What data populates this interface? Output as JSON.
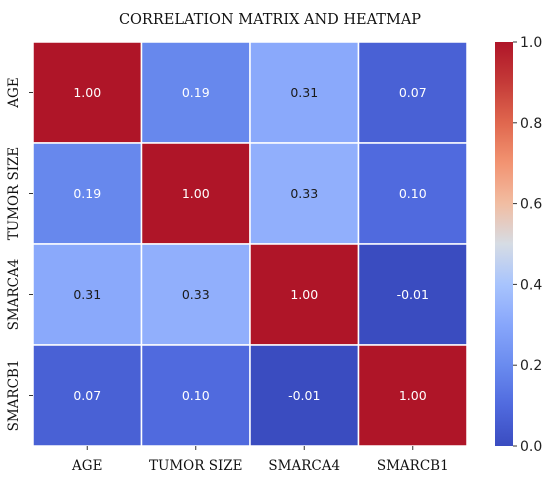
{
  "chart_data": {
    "type": "heatmap",
    "title": "CORRELATION MATRIX AND HEATMAP",
    "x_labels": [
      "AGE",
      "TUMOR SIZE",
      "SMARCA4",
      "SMARCB1"
    ],
    "y_labels": [
      "AGE",
      "TUMOR SIZE",
      "SMARCA4",
      "SMARCB1"
    ],
    "values": [
      [
        1.0,
        0.19,
        0.31,
        0.07
      ],
      [
        0.19,
        1.0,
        0.33,
        0.1
      ],
      [
        0.31,
        0.33,
        1.0,
        -0.01
      ],
      [
        0.07,
        0.1,
        -0.01,
        1.0
      ]
    ],
    "value_labels": [
      [
        "1.00",
        "0.19",
        "0.31",
        "0.07"
      ],
      [
        "0.19",
        "1.00",
        "0.33",
        "0.10"
      ],
      [
        "0.31",
        "0.33",
        "1.00",
        "-0.01"
      ],
      [
        "0.07",
        "0.10",
        "-0.01",
        "1.00"
      ]
    ],
    "colorbar": {
      "range": [
        0.0,
        1.0
      ],
      "ticks": [
        "0.0",
        "0.2",
        "0.4",
        "0.6",
        "0.8",
        "1.0"
      ],
      "colormap": "coolwarm"
    }
  }
}
